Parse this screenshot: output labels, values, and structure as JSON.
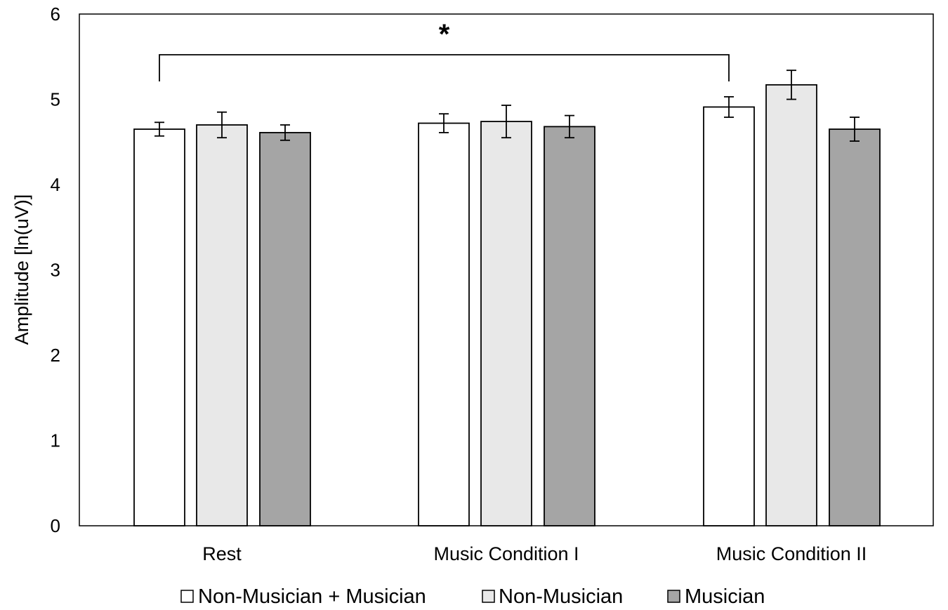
{
  "chart_data": {
    "type": "bar",
    "title": "",
    "xlabel": "",
    "ylabel": "Amplitude [ln(uV)]",
    "ylim": [
      0,
      6
    ],
    "yticks": [
      "0",
      "1",
      "2",
      "3",
      "4",
      "5",
      "6"
    ],
    "categories": [
      "Rest",
      "Music Condition I",
      "Music Condition II"
    ],
    "series": [
      {
        "name": "Non-Musician + Musician",
        "color": "#ffffff",
        "values": [
          4.65,
          4.72,
          4.91
        ],
        "errors": [
          0.08,
          0.11,
          0.12
        ]
      },
      {
        "name": "Non-Musician",
        "color": "#e8e8e8",
        "values": [
          4.7,
          4.74,
          5.17
        ],
        "errors": [
          0.15,
          0.19,
          0.17
        ]
      },
      {
        "name": "Musician",
        "color": "#a5a5a5",
        "values": [
          4.61,
          4.68,
          4.65
        ],
        "errors": [
          0.09,
          0.13,
          0.14
        ]
      }
    ],
    "significance": {
      "label": "*",
      "from_category": "Rest",
      "to_category": "Music Condition II",
      "series": "Non-Musician + Musician"
    },
    "legend_position": "bottom",
    "grid": false
  }
}
